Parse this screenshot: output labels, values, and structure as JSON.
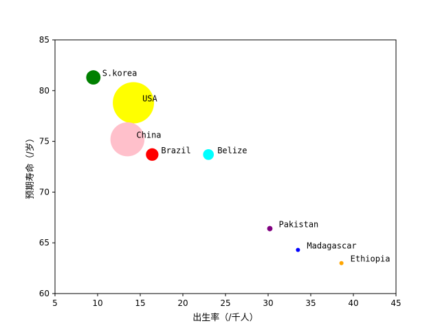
{
  "chart_data": {
    "type": "scatter",
    "xlabel": "出生率（/千人）",
    "ylabel": "预期寿命（/岁）",
    "xlim": [
      5,
      45
    ],
    "ylim": [
      60,
      85
    ],
    "xticks": [
      "5",
      "10",
      "15",
      "20",
      "25",
      "30",
      "35",
      "40",
      "45"
    ],
    "yticks": [
      "60",
      "65",
      "70",
      "75",
      "80",
      "85"
    ],
    "grid": false,
    "points": [
      {
        "label": "S.korea",
        "x": 9.5,
        "y": 81.3,
        "color": "#008000",
        "bubble": 0.16
      },
      {
        "label": "USA",
        "x": 14.2,
        "y": 78.8,
        "color": "#ffff00",
        "bubble": 0.46
      },
      {
        "label": "China",
        "x": 13.5,
        "y": 75.2,
        "color": "#ffc0cb",
        "bubble": 0.38
      },
      {
        "label": "Brazil",
        "x": 16.4,
        "y": 73.7,
        "color": "#ff0000",
        "bubble": 0.14
      },
      {
        "label": "Belize",
        "x": 23.0,
        "y": 73.7,
        "color": "#00ffff",
        "bubble": 0.12
      },
      {
        "label": "Pakistan",
        "x": 30.2,
        "y": 66.4,
        "color": "#800080",
        "bubble": 0.06
      },
      {
        "label": "Madagascar",
        "x": 33.5,
        "y": 64.3,
        "color": "#0000ff",
        "bubble": 0.04
      },
      {
        "label": "Ethiopia",
        "x": 38.6,
        "y": 63.0,
        "color": "#ffa500",
        "bubble": 0.04
      }
    ]
  }
}
